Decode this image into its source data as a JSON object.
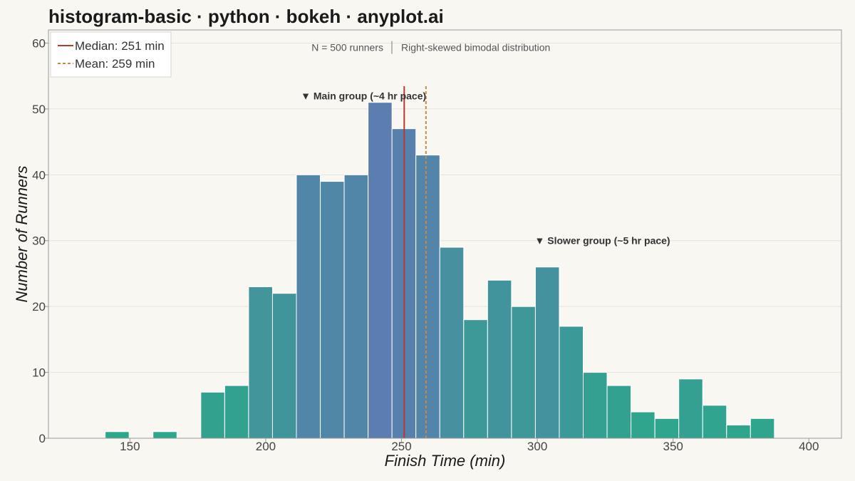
{
  "title": "histogram-basic · python · bokeh · anyplot.ai",
  "chart_data": {
    "type": "bar",
    "subtype": "histogram",
    "xlabel": "Finish Time (min)",
    "ylabel": "Number of Runners",
    "xlim": [
      120,
      412
    ],
    "ylim": [
      0,
      62
    ],
    "x_ticks": [
      150,
      200,
      250,
      300,
      350,
      400
    ],
    "y_ticks": [
      0,
      10,
      20,
      30,
      40,
      50,
      60
    ],
    "grid": true,
    "bin_width": 8.8,
    "bins": [
      {
        "x0": 140.9,
        "x1": 149.7,
        "count": 1
      },
      {
        "x0": 149.7,
        "x1": 158.5,
        "count": 0
      },
      {
        "x0": 158.5,
        "x1": 167.3,
        "count": 1
      },
      {
        "x0": 167.3,
        "x1": 176.1,
        "count": 0
      },
      {
        "x0": 176.1,
        "x1": 184.9,
        "count": 7
      },
      {
        "x0": 184.9,
        "x1": 193.7,
        "count": 8
      },
      {
        "x0": 193.7,
        "x1": 202.5,
        "count": 23
      },
      {
        "x0": 202.5,
        "x1": 211.3,
        "count": 22
      },
      {
        "x0": 211.3,
        "x1": 220.1,
        "count": 40
      },
      {
        "x0": 220.1,
        "x1": 228.9,
        "count": 39
      },
      {
        "x0": 228.9,
        "x1": 237.7,
        "count": 40
      },
      {
        "x0": 237.7,
        "x1": 246.5,
        "count": 51
      },
      {
        "x0": 246.5,
        "x1": 255.3,
        "count": 47
      },
      {
        "x0": 255.3,
        "x1": 264.1,
        "count": 43
      },
      {
        "x0": 264.1,
        "x1": 272.9,
        "count": 29
      },
      {
        "x0": 272.9,
        "x1": 281.7,
        "count": 18
      },
      {
        "x0": 281.7,
        "x1": 290.5,
        "count": 24
      },
      {
        "x0": 290.5,
        "x1": 299.3,
        "count": 20
      },
      {
        "x0": 299.3,
        "x1": 308.1,
        "count": 26
      },
      {
        "x0": 308.1,
        "x1": 316.9,
        "count": 17
      },
      {
        "x0": 316.9,
        "x1": 325.7,
        "count": 10
      },
      {
        "x0": 325.7,
        "x1": 334.5,
        "count": 8
      },
      {
        "x0": 334.5,
        "x1": 343.3,
        "count": 4
      },
      {
        "x0": 343.3,
        "x1": 352.1,
        "count": 3
      },
      {
        "x0": 352.1,
        "x1": 360.9,
        "count": 9
      },
      {
        "x0": 360.9,
        "x1": 369.7,
        "count": 5
      },
      {
        "x0": 369.7,
        "x1": 378.5,
        "count": 2
      },
      {
        "x0": 378.5,
        "x1": 387.3,
        "count": 3
      }
    ],
    "median": {
      "value": 251,
      "label": "Median: 251 min",
      "color": "#b5392f",
      "style": "solid"
    },
    "mean": {
      "value": 259,
      "label": "Mean: 259 min",
      "color": "#c98a3a",
      "style": "dashed"
    },
    "legend_position": "top-left",
    "annotations": [
      {
        "text": "▼ Main group (~4 hr pace)",
        "x": 236,
        "y": 52
      },
      {
        "text": "▼ Slower group (~5 hr pace)",
        "x": 324,
        "y": 30
      }
    ],
    "subtitle_left": "N = 500 runners",
    "subtitle_right": "Right-skewed bimodal distribution",
    "colors": {
      "low": "#2ba88a",
      "high": "#5b7db0",
      "bar_edge": "#ffffff",
      "grid": "#e6e3dc",
      "frame": "#9a9a9a"
    }
  }
}
